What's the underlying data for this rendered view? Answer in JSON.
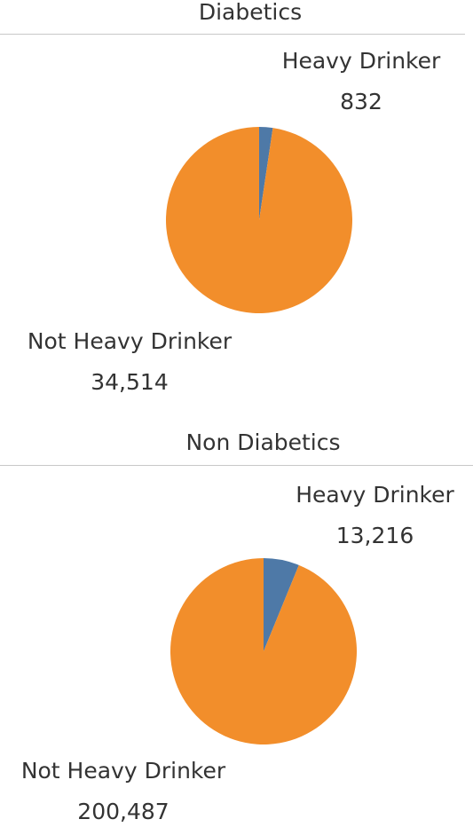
{
  "chart_data": [
    {
      "type": "pie",
      "title": "Diabetics",
      "categories": [
        "Heavy Drinker",
        "Not Heavy Drinker"
      ],
      "values": [
        832,
        34514
      ],
      "value_labels": [
        "832",
        "34,514"
      ],
      "colors": [
        "#4e79a7",
        "#f28e2b"
      ]
    },
    {
      "type": "pie",
      "title": "Non Diabetics",
      "categories": [
        "Heavy Drinker",
        "Not Heavy Drinker"
      ],
      "values": [
        13216,
        200487
      ],
      "value_labels": [
        "13,216",
        "200,487"
      ],
      "colors": [
        "#4e79a7",
        "#f28e2b"
      ]
    }
  ]
}
